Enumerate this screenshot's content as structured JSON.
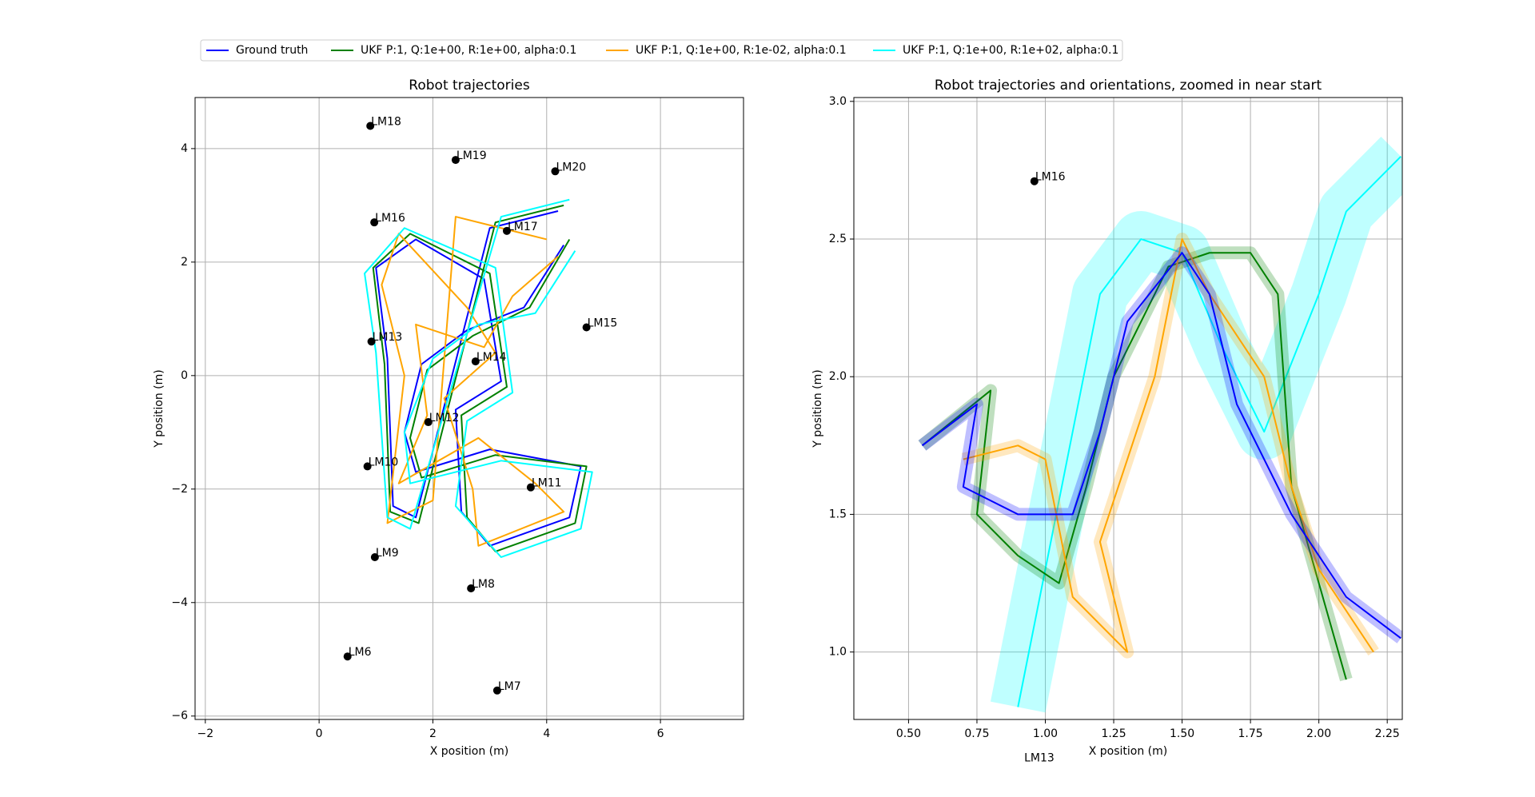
{
  "chart_data": [
    {
      "type": "line",
      "title": "Robot trajectories",
      "xlabel": "X position (m)",
      "ylabel": "Y position (m)",
      "legend": "top",
      "xlim": [
        -2.18,
        7.46
      ],
      "ylim": [
        -6.06,
        4.9
      ],
      "xticks": [
        {
          "value": -2,
          "label": "−2"
        },
        0,
        2,
        4,
        6
      ],
      "yticks": [
        {
          "value": -6,
          "label": "−6"
        },
        {
          "value": -4,
          "label": "−4"
        },
        {
          "value": -2,
          "label": "−2"
        },
        0,
        2,
        4
      ],
      "grid": true,
      "series": [
        {
          "name": "Ground truth",
          "color": "#0000ff",
          "x": [
            4.3,
            3.6,
            2.6,
            1.8,
            1.5,
            1.7,
            3.0,
            4.6,
            4.4,
            3.0,
            2.5,
            2.4,
            3.2,
            2.9,
            1.7,
            1.0,
            1.2,
            1.3,
            1.7,
            3.0,
            4.2
          ],
          "y": [
            2.3,
            1.2,
            0.8,
            0.2,
            -1.0,
            -1.7,
            -1.3,
            -1.6,
            -2.5,
            -3.0,
            -2.4,
            -0.6,
            -0.1,
            1.7,
            2.4,
            1.9,
            0.3,
            -2.3,
            -2.5,
            2.6,
            2.9
          ]
        },
        {
          "name": "UKF P:1, Q:1e+00, R:1e+00, alpha:0.1",
          "color": "#008000",
          "x": [
            4.4,
            3.7,
            2.7,
            1.9,
            1.6,
            1.8,
            3.1,
            4.7,
            4.5,
            3.1,
            2.6,
            2.5,
            3.3,
            3.0,
            1.6,
            0.95,
            1.15,
            1.25,
            1.75,
            3.1,
            4.3
          ],
          "y": [
            2.4,
            1.2,
            0.7,
            0.1,
            -1.1,
            -1.8,
            -1.4,
            -1.6,
            -2.6,
            -3.1,
            -2.5,
            -0.7,
            -0.2,
            1.8,
            2.5,
            1.9,
            0.2,
            -2.4,
            -2.6,
            2.7,
            3.0
          ]
        },
        {
          "name": "UKF P:1, Q:1e+00, R:1e-02, alpha:0.1",
          "color": "#ffa500",
          "x": [
            4.2,
            3.4,
            2.9,
            1.7,
            1.9,
            1.4,
            2.8,
            3.8,
            4.3,
            2.8,
            2.7,
            2.2,
            3.1,
            2.6,
            1.4,
            1.1,
            1.5,
            1.2,
            2.0,
            2.4,
            4.0
          ],
          "y": [
            2.1,
            1.4,
            0.5,
            0.9,
            -0.7,
            -1.9,
            -1.1,
            -1.9,
            -2.4,
            -3.0,
            -2.0,
            -0.4,
            0.4,
            1.2,
            2.5,
            1.6,
            0.0,
            -2.6,
            -2.2,
            2.8,
            2.4
          ]
        },
        {
          "name": "UKF P:1, Q:1e+00, R:1e+02, alpha:0.1",
          "color": "#00ffff",
          "x": [
            4.5,
            3.8,
            2.8,
            2.0,
            1.5,
            1.6,
            3.2,
            4.8,
            4.6,
            3.2,
            2.4,
            2.6,
            3.4,
            3.1,
            1.5,
            0.8,
            1.0,
            1.2,
            1.6,
            3.2,
            4.4
          ],
          "y": [
            2.2,
            1.1,
            0.9,
            0.3,
            -1.0,
            -1.9,
            -1.5,
            -1.7,
            -2.7,
            -3.2,
            -2.3,
            -0.8,
            -0.3,
            1.9,
            2.6,
            1.8,
            0.4,
            -2.5,
            -2.7,
            2.8,
            3.1
          ]
        }
      ],
      "landmarks": {
        "color": "#000000",
        "names": [
          "LM18",
          "LM19",
          "LM20",
          "LM16",
          "LM17",
          "LM15",
          "LM13",
          "LM14",
          "LM12",
          "LM10",
          "LM11",
          "LM9",
          "LM8",
          "LM6",
          "LM7"
        ],
        "x": [
          0.9,
          2.4,
          4.15,
          0.97,
          3.3,
          4.7,
          0.92,
          2.75,
          1.92,
          0.85,
          3.72,
          0.98,
          2.67,
          0.5,
          3.13
        ],
        "y": [
          4.4,
          3.8,
          3.6,
          2.7,
          2.55,
          0.85,
          0.6,
          0.25,
          -0.82,
          -1.6,
          -1.97,
          -3.2,
          -3.75,
          -4.95,
          -5.55
        ]
      }
    },
    {
      "type": "line",
      "title": "Robot trajectories and orientations, zoomed in near start",
      "xlabel": "X position (m)",
      "ylabel": "Y position (m)",
      "xlim": [
        0.3,
        2.305
      ],
      "ylim": [
        0.755,
        3.014
      ],
      "xticks": [
        {
          "value": 0.5,
          "label": "0.50"
        },
        0.75,
        {
          "value": 1,
          "label": "1.00"
        },
        1.25,
        {
          "value": 1.5,
          "label": "1.50"
        },
        1.75,
        {
          "value": 2,
          "label": "2.00"
        },
        2.25
      ],
      "yticks": [
        {
          "value": 1,
          "label": "1.0"
        },
        1.5,
        {
          "value": 2,
          "label": "2.0"
        },
        2.5,
        {
          "value": 3,
          "label": "3.0"
        }
      ],
      "grid": true,
      "series": [
        {
          "name": "UKF P:1, Q:1e+00, R:1e+02, alpha:0.1",
          "color": "#00ffff",
          "x": [
            0.9,
            1.0,
            1.1,
            1.2,
            1.35,
            1.5,
            1.65,
            1.8,
            2.0,
            2.1,
            2.3
          ],
          "y": [
            0.8,
            1.3,
            1.8,
            2.3,
            2.5,
            2.45,
            2.1,
            1.8,
            2.3,
            2.6,
            2.8
          ]
        },
        {
          "name": "UKF P:1, Q:1e+00, R:1e+00, alpha:0.1",
          "color": "#008000",
          "x": [
            0.55,
            0.8,
            0.75,
            0.9,
            1.05,
            1.15,
            1.25,
            1.45,
            1.6,
            1.75,
            1.85,
            1.9,
            2.1
          ],
          "y": [
            1.75,
            1.95,
            1.5,
            1.35,
            1.25,
            1.6,
            2.0,
            2.4,
            2.45,
            2.45,
            2.3,
            1.6,
            0.9
          ]
        },
        {
          "name": "UKF P:1, Q:1e+00, R:1e-02, alpha:0.1",
          "color": "#ffa500",
          "x": [
            0.7,
            0.9,
            1.0,
            1.1,
            1.3,
            1.2,
            1.4,
            1.5,
            1.6,
            1.8,
            1.9,
            2.0,
            2.2
          ],
          "y": [
            1.7,
            1.75,
            1.7,
            1.2,
            1.0,
            1.4,
            2.0,
            2.5,
            2.3,
            2.0,
            1.6,
            1.3,
            1.0
          ]
        },
        {
          "name": "Ground truth",
          "color": "#0000ff",
          "x": [
            0.55,
            0.75,
            0.7,
            0.9,
            1.1,
            1.2,
            1.3,
            1.5,
            1.6,
            1.7,
            1.9,
            2.1,
            2.3
          ],
          "y": [
            1.75,
            1.9,
            1.6,
            1.5,
            1.5,
            1.8,
            2.2,
            2.45,
            2.3,
            1.9,
            1.5,
            1.2,
            1.05
          ]
        }
      ],
      "landmarks": {
        "color": "#000000",
        "names": [
          "LM16",
          "LM13"
        ],
        "x": [
          0.96,
          0.92
        ],
        "y": [
          2.71,
          0.6
        ]
      }
    }
  ]
}
